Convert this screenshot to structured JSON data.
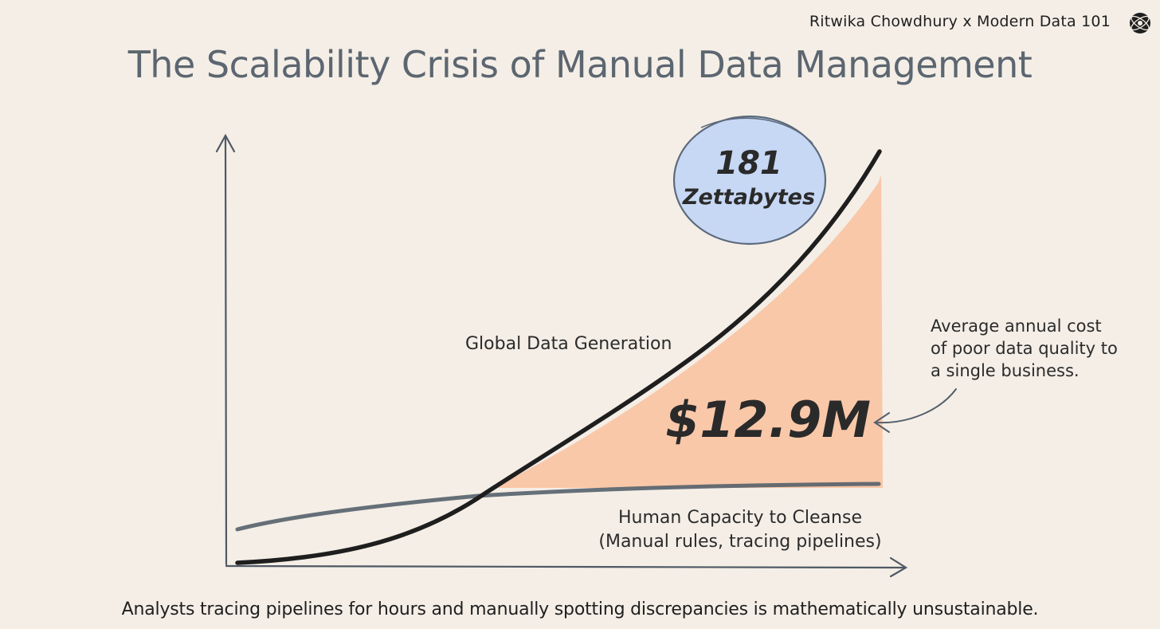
{
  "header": {
    "credit": "Ritwika Chowdhury x Modern Data 101",
    "logo_icon": "globe-logo-icon"
  },
  "title": "The Scalability Crisis of Manual Data Management",
  "diagram": {
    "curve_label": "Global Data Generation",
    "bubble_number": "181",
    "bubble_unit": "Zettabytes",
    "gap_value": "$12.9M",
    "gap_note": [
      "Average annual cost",
      "of poor data quality to",
      "a single business."
    ],
    "capacity_label": [
      "Human Capacity to Cleanse",
      "(Manual rules, tracing pipelines)"
    ],
    "colors": {
      "gap_fill": "#f9c4a4",
      "bubble_fill": "#c7d8f5",
      "bubble_stroke": "#5d6a7c",
      "curve": "#1e1e1e",
      "capacity_line": "#55606c",
      "axis": "#4f5964"
    }
  },
  "footer": "Analysts tracing pipelines for hours and manually spotting discrepancies is mathematically unsustainable."
}
